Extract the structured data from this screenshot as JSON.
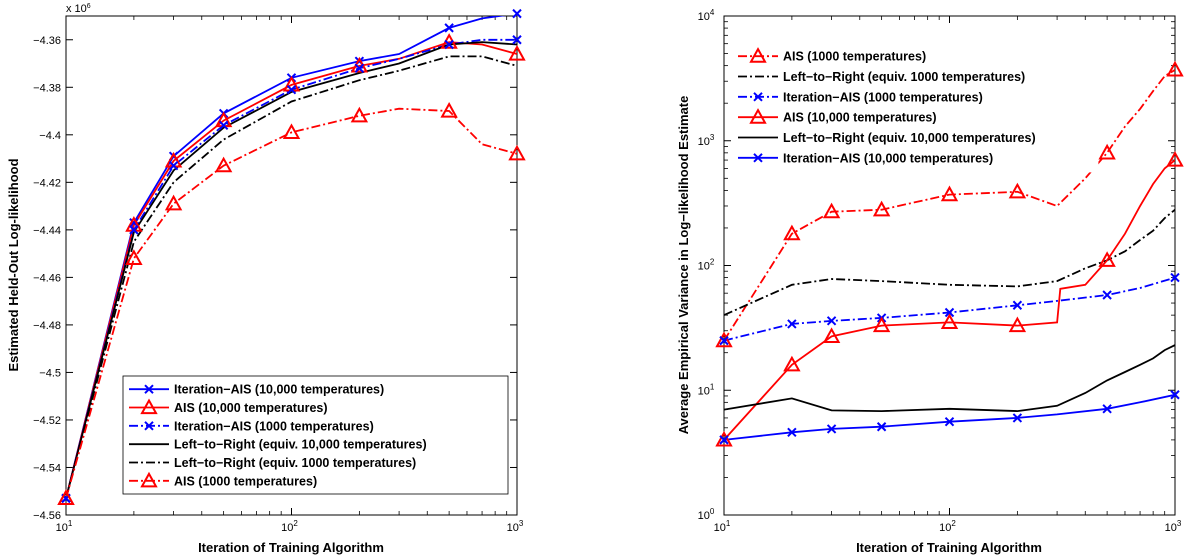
{
  "chart_data": [
    {
      "type": "line",
      "xscale": "log",
      "xlim": [
        10,
        1000
      ],
      "ylim": [
        -4.56,
        -4.35
      ],
      "y_multiplier_label": "x 10",
      "y_multiplier_exponent": "6",
      "xlabel": "Iteration of Training Algorithm",
      "ylabel": "Estimated Held-Out Log-likelihood",
      "xticks": [
        {
          "value": 10,
          "base": "10",
          "exp": "1"
        },
        {
          "value": 100,
          "base": "10",
          "exp": "2"
        },
        {
          "value": 1000,
          "base": "10",
          "exp": "3"
        }
      ],
      "yticks": [
        {
          "value": -4.36,
          "label": "-4.36"
        },
        {
          "value": -4.38,
          "label": "-4.38"
        },
        {
          "value": -4.4,
          "label": "-4.4"
        },
        {
          "value": -4.42,
          "label": "-4.42"
        },
        {
          "value": -4.44,
          "label": "-4.44"
        },
        {
          "value": -4.46,
          "label": "-4.46"
        },
        {
          "value": -4.48,
          "label": "-4.48"
        },
        {
          "value": -4.5,
          "label": "-4.5"
        },
        {
          "value": -4.52,
          "label": "-4.52"
        },
        {
          "value": -4.54,
          "label": "-4.54"
        },
        {
          "value": -4.56,
          "label": "-4.56"
        }
      ],
      "grid": false,
      "legend_position": "lower-right",
      "series": [
        {
          "name": "Iteration−AIS (10,000 temperatures)",
          "color": "#0000ff",
          "dash": "solid",
          "marker": "x",
          "x": [
            10,
            20,
            30,
            50,
            100,
            200,
            300,
            500,
            700,
            1000
          ],
          "y": [
            -4.553,
            -4.437,
            -4.409,
            -4.391,
            -4.376,
            -4.369,
            -4.366,
            -4.355,
            -4.351,
            -4.349
          ],
          "marker_x": [
            10,
            20,
            30,
            50,
            100,
            200,
            500,
            1000
          ]
        },
        {
          "name": "AIS (10,000 temperatures)",
          "color": "#ff0000",
          "dash": "solid",
          "marker": "triangle",
          "x": [
            10,
            20,
            30,
            50,
            100,
            200,
            300,
            500,
            700,
            1000
          ],
          "y": [
            -4.553,
            -4.438,
            -4.411,
            -4.394,
            -4.379,
            -4.371,
            -4.368,
            -4.361,
            -4.362,
            -4.366
          ],
          "marker_x": [
            10,
            20,
            30,
            50,
            100,
            200,
            500,
            1000
          ]
        },
        {
          "name": "Iteration−AIS (1000 temperatures)",
          "color": "#0000ff",
          "dash": "dashdot",
          "marker": "x",
          "x": [
            10,
            20,
            30,
            50,
            100,
            200,
            300,
            500,
            700,
            1000
          ],
          "y": [
            -4.553,
            -4.44,
            -4.413,
            -4.396,
            -4.381,
            -4.372,
            -4.368,
            -4.362,
            -4.36,
            -4.36
          ],
          "marker_x": [
            10,
            20,
            30,
            50,
            100,
            200,
            500,
            1000
          ]
        },
        {
          "name": "Left−to−Right (equiv. 10,000 temperatures)",
          "color": "#000000",
          "dash": "solid",
          "marker": "none",
          "x": [
            10,
            20,
            30,
            50,
            100,
            200,
            300,
            500,
            700,
            1000
          ],
          "y": [
            -4.553,
            -4.441,
            -4.415,
            -4.397,
            -4.382,
            -4.374,
            -4.37,
            -4.362,
            -4.361,
            -4.362
          ]
        },
        {
          "name": "Left−to−Right (equiv. 1000 temperatures)",
          "color": "#000000",
          "dash": "dashdot",
          "marker": "none",
          "x": [
            10,
            20,
            30,
            50,
            100,
            200,
            300,
            500,
            700,
            1000
          ],
          "y": [
            -4.553,
            -4.445,
            -4.42,
            -4.402,
            -4.386,
            -4.377,
            -4.373,
            -4.367,
            -4.367,
            -4.371
          ]
        },
        {
          "name": "AIS (1000 temperatures)",
          "color": "#ff0000",
          "dash": "dashdot",
          "marker": "triangle",
          "x": [
            10,
            20,
            30,
            50,
            100,
            200,
            300,
            500,
            700,
            1000
          ],
          "y": [
            -4.553,
            -4.452,
            -4.429,
            -4.413,
            -4.399,
            -4.392,
            -4.389,
            -4.39,
            -4.404,
            -4.408
          ],
          "marker_x": [
            10,
            20,
            30,
            50,
            100,
            200,
            500,
            1000
          ]
        }
      ]
    },
    {
      "type": "line",
      "xscale": "log",
      "yscale": "log",
      "xlim": [
        10,
        1000
      ],
      "ylim": [
        1,
        10000
      ],
      "xlabel": "Iteration of Training Algorithm",
      "ylabel": "Average Empirical Variance in Log−likelihood Estimate",
      "xticks": [
        {
          "value": 10,
          "base": "10",
          "exp": "1"
        },
        {
          "value": 100,
          "base": "10",
          "exp": "2"
        },
        {
          "value": 1000,
          "base": "10",
          "exp": "3"
        }
      ],
      "yticks": [
        {
          "value": 1,
          "base": "10",
          "exp": "0"
        },
        {
          "value": 10,
          "base": "10",
          "exp": "1"
        },
        {
          "value": 100,
          "base": "10",
          "exp": "2"
        },
        {
          "value": 1000,
          "base": "10",
          "exp": "3"
        },
        {
          "value": 10000,
          "base": "10",
          "exp": "4"
        }
      ],
      "grid": false,
      "legend_position": "top-left",
      "series": [
        {
          "name": "AIS (1000 temperatures)",
          "color": "#ff0000",
          "dash": "dashdot",
          "marker": "triangle",
          "x": [
            10,
            20,
            30,
            50,
            100,
            200,
            300,
            400,
            500,
            600,
            700,
            800,
            900,
            1000
          ],
          "y": [
            25,
            180,
            270,
            280,
            370,
            390,
            300,
            500,
            800,
            1300,
            1800,
            2500,
            3300,
            3700
          ],
          "marker_x": [
            10,
            20,
            30,
            50,
            100,
            200,
            500,
            1000
          ]
        },
        {
          "name": "Left−to−Right (equiv. 1000 temperatures)",
          "color": "#000000",
          "dash": "dashdot",
          "marker": "none",
          "x": [
            10,
            20,
            30,
            50,
            100,
            200,
            300,
            400,
            500,
            600,
            700,
            800,
            900,
            1000
          ],
          "y": [
            40,
            70,
            78,
            75,
            70,
            68,
            75,
            95,
            110,
            130,
            160,
            190,
            240,
            280
          ]
        },
        {
          "name": "Iteration−AIS (1000 temperatures)",
          "color": "#0000ff",
          "dash": "dashdot",
          "marker": "x",
          "x": [
            10,
            20,
            30,
            50,
            100,
            200,
            300,
            500,
            700,
            1000
          ],
          "y": [
            25,
            34,
            36,
            38,
            42,
            48,
            52,
            58,
            66,
            80
          ],
          "marker_x": [
            10,
            20,
            30,
            50,
            100,
            200,
            500,
            1000
          ]
        },
        {
          "name": "AIS (10,000 temperatures)",
          "color": "#ff0000",
          "dash": "solid",
          "marker": "triangle",
          "x": [
            10,
            20,
            30,
            50,
            100,
            200,
            300,
            310,
            400,
            500,
            600,
            700,
            800,
            900,
            1000
          ],
          "y": [
            4,
            16,
            27,
            33,
            35,
            33,
            35,
            65,
            70,
            110,
            180,
            300,
            450,
            600,
            700
          ],
          "marker_x": [
            10,
            20,
            30,
            50,
            100,
            200,
            500,
            1000
          ]
        },
        {
          "name": "Left−to−Right (equiv. 10,000 temperatures)",
          "color": "#000000",
          "dash": "solid",
          "marker": "none",
          "x": [
            10,
            20,
            30,
            50,
            100,
            200,
            300,
            400,
            500,
            600,
            700,
            800,
            900,
            1000
          ],
          "y": [
            7,
            8.6,
            6.9,
            6.8,
            7.1,
            6.8,
            7.5,
            9.5,
            12,
            14,
            16,
            18,
            21,
            23
          ]
        },
        {
          "name": "Iteration−AIS (10,000 temperatures)",
          "color": "#0000ff",
          "dash": "solid",
          "marker": "x",
          "x": [
            10,
            20,
            30,
            50,
            100,
            200,
            300,
            500,
            700,
            1000
          ],
          "y": [
            4,
            4.6,
            4.9,
            5.1,
            5.6,
            6.0,
            6.4,
            7.1,
            8.0,
            9.2
          ],
          "marker_x": [
            10,
            20,
            30,
            50,
            100,
            200,
            500,
            1000
          ]
        }
      ]
    }
  ]
}
